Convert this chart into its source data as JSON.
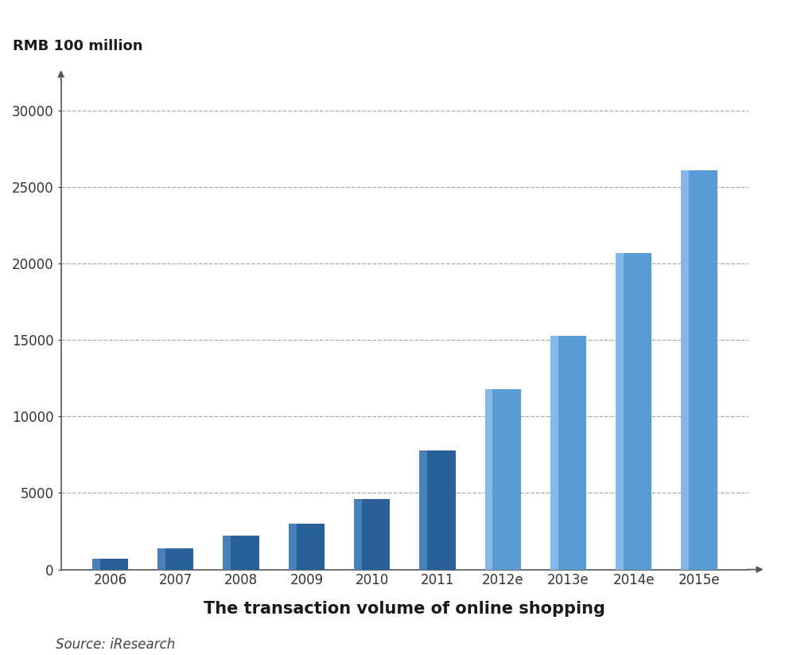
{
  "categories": [
    "2006",
    "2007",
    "2008",
    "2009",
    "2010",
    "2011",
    "2012e",
    "2013e",
    "2014e",
    "2015e"
  ],
  "values": [
    700,
    1400,
    2200,
    3000,
    4600,
    7800,
    11800,
    15300,
    20700,
    26100
  ],
  "ylabel": "RMB 100 million",
  "xlabel": "The transaction volume of online shopping",
  "source": "Source: iResearch",
  "ylim": [
    0,
    32000
  ],
  "yticks": [
    0,
    5000,
    10000,
    15000,
    20000,
    25000,
    30000
  ],
  "background_color": "#FFFFFF",
  "grid_color": "#AAAAAA",
  "bar_color_dark": "#2A6099",
  "bar_color_light": "#5B9BD5",
  "bar_highlight_dark": "#4A80B9",
  "bar_highlight_light": "#85B8E8",
  "ylabel_fontsize": 13,
  "xlabel_fontsize": 15,
  "source_fontsize": 12,
  "tick_fontsize": 12
}
